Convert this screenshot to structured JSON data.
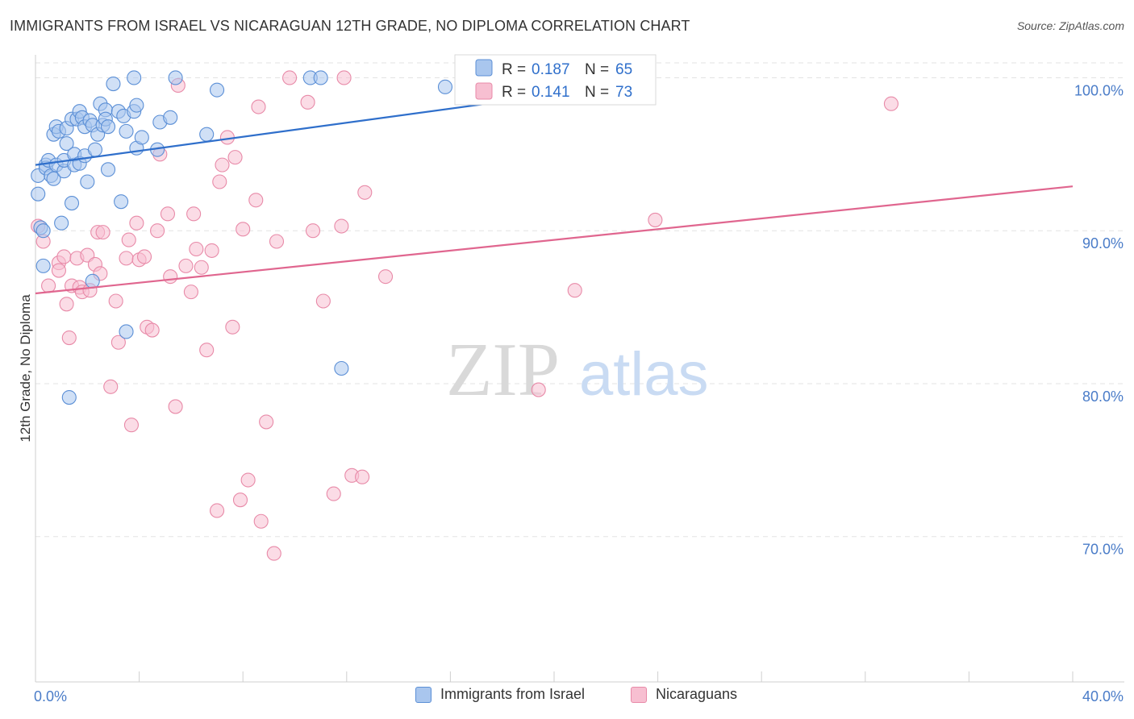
{
  "header": {
    "title": "IMMIGRANTS FROM ISRAEL VS NICARAGUAN 12TH GRADE, NO DIPLOMA CORRELATION CHART",
    "source": "Source: ZipAtlas.com"
  },
  "watermark": {
    "zip": "ZIP",
    "atlas": "atlas"
  },
  "legend_top": [
    {
      "r_label": "R = ",
      "r_value": "0.187",
      "n_label": "N = ",
      "n_value": "65"
    },
    {
      "r_label": "R = ",
      "r_value": "0.141",
      "n_label": "N = ",
      "n_value": "73"
    }
  ],
  "colors": {
    "blue_fill": "#a9c6ee",
    "blue_stroke": "#5b8fd6",
    "blue_line": "#2f6fcb",
    "pink_fill": "#f7bfd1",
    "pink_stroke": "#e88aa8",
    "pink_line": "#e0668f",
    "tick_text": "#4a7cc8",
    "grid": "#e3e3e3"
  },
  "chart_data": {
    "type": "scatter",
    "title": "IMMIGRANTS FROM ISRAEL VS NICARAGUAN 12TH GRADE, NO DIPLOMA CORRELATION CHART",
    "xlabel": "",
    "ylabel": "12th Grade, No Diploma",
    "xlim": [
      0,
      40
    ],
    "ylim": [
      60.5,
      101.5
    ],
    "x_tick_labels": [
      "0.0%",
      "40.0%"
    ],
    "y_ticks": [
      70,
      80,
      90,
      100
    ],
    "y_tick_labels": [
      "70.0%",
      "80.0%",
      "90.0%",
      "100.0%"
    ],
    "grid": true,
    "legend_placement": "bottom",
    "series": [
      {
        "name": "Immigrants from Israel",
        "color": "#a9c6ee",
        "R": 0.187,
        "N": 65,
        "trend": {
          "x": [
            0.0,
            20.0
          ],
          "y": [
            94.3,
            98.9
          ]
        },
        "points": [
          [
            0.1,
            92.4
          ],
          [
            0.1,
            93.6
          ],
          [
            0.2,
            90.2
          ],
          [
            0.3,
            90.0
          ],
          [
            0.3,
            87.7
          ],
          [
            0.4,
            94.3
          ],
          [
            0.4,
            94.1
          ],
          [
            0.5,
            94.6
          ],
          [
            0.6,
            93.6
          ],
          [
            0.7,
            93.4
          ],
          [
            0.7,
            96.3
          ],
          [
            0.8,
            94.3
          ],
          [
            0.8,
            96.8
          ],
          [
            0.9,
            96.5
          ],
          [
            1.0,
            90.5
          ],
          [
            1.1,
            93.9
          ],
          [
            1.1,
            94.6
          ],
          [
            1.2,
            95.7
          ],
          [
            1.2,
            96.7
          ],
          [
            1.3,
            79.1
          ],
          [
            1.4,
            97.3
          ],
          [
            1.4,
            91.8
          ],
          [
            1.5,
            94.3
          ],
          [
            1.5,
            95.0
          ],
          [
            1.6,
            97.3
          ],
          [
            1.7,
            94.4
          ],
          [
            1.7,
            97.8
          ],
          [
            1.8,
            97.4
          ],
          [
            1.9,
            96.8
          ],
          [
            1.9,
            94.9
          ],
          [
            2.0,
            93.2
          ],
          [
            2.1,
            97.2
          ],
          [
            2.2,
            96.9
          ],
          [
            2.2,
            86.7
          ],
          [
            2.3,
            95.3
          ],
          [
            2.4,
            96.3
          ],
          [
            2.5,
            98.3
          ],
          [
            2.6,
            96.9
          ],
          [
            2.7,
            97.9
          ],
          [
            2.7,
            97.3
          ],
          [
            2.8,
            96.8
          ],
          [
            2.8,
            94.0
          ],
          [
            3.0,
            99.6
          ],
          [
            3.2,
            97.8
          ],
          [
            3.3,
            91.9
          ],
          [
            3.4,
            97.5
          ],
          [
            3.5,
            83.4
          ],
          [
            3.5,
            96.5
          ],
          [
            3.8,
            100.0
          ],
          [
            3.8,
            97.8
          ],
          [
            3.9,
            98.2
          ],
          [
            3.9,
            95.4
          ],
          [
            4.1,
            96.1
          ],
          [
            4.7,
            95.3
          ],
          [
            4.8,
            97.1
          ],
          [
            5.2,
            97.4
          ],
          [
            5.4,
            100.0
          ],
          [
            6.6,
            96.3
          ],
          [
            7.0,
            99.2
          ],
          [
            10.6,
            100.0
          ],
          [
            11.0,
            100.0
          ],
          [
            11.8,
            81.0
          ],
          [
            15.8,
            99.4
          ],
          [
            16.5,
            100.0
          ],
          [
            17.0,
            100.0
          ]
        ]
      },
      {
        "name": "Nicaraguans",
        "color": "#f7bfd1",
        "R": 0.141,
        "N": 73,
        "trend": {
          "x": [
            0.0,
            40.0
          ],
          "y": [
            85.9,
            92.9
          ]
        },
        "points": [
          [
            0.1,
            90.3
          ],
          [
            0.3,
            89.3
          ],
          [
            0.5,
            86.4
          ],
          [
            0.9,
            87.9
          ],
          [
            0.9,
            87.4
          ],
          [
            1.1,
            88.3
          ],
          [
            1.2,
            85.2
          ],
          [
            1.3,
            83.0
          ],
          [
            1.4,
            86.4
          ],
          [
            1.6,
            88.2
          ],
          [
            1.7,
            86.3
          ],
          [
            1.8,
            86.0
          ],
          [
            2.0,
            88.4
          ],
          [
            2.1,
            86.1
          ],
          [
            2.3,
            87.8
          ],
          [
            2.4,
            89.9
          ],
          [
            2.5,
            87.2
          ],
          [
            2.6,
            89.9
          ],
          [
            2.9,
            79.8
          ],
          [
            3.1,
            85.4
          ],
          [
            3.2,
            82.7
          ],
          [
            3.5,
            88.2
          ],
          [
            3.6,
            89.4
          ],
          [
            3.7,
            77.3
          ],
          [
            3.9,
            90.5
          ],
          [
            4.0,
            88.1
          ],
          [
            4.2,
            88.3
          ],
          [
            4.3,
            83.7
          ],
          [
            4.5,
            83.5
          ],
          [
            4.7,
            90.0
          ],
          [
            4.8,
            95.0
          ],
          [
            5.1,
            91.1
          ],
          [
            5.2,
            87.0
          ],
          [
            5.4,
            78.5
          ],
          [
            5.5,
            99.5
          ],
          [
            5.8,
            87.7
          ],
          [
            6.0,
            86.0
          ],
          [
            6.1,
            91.1
          ],
          [
            6.2,
            88.8
          ],
          [
            6.4,
            87.6
          ],
          [
            6.6,
            82.2
          ],
          [
            6.8,
            88.7
          ],
          [
            7.0,
            71.7
          ],
          [
            7.1,
            93.2
          ],
          [
            7.2,
            94.3
          ],
          [
            7.4,
            96.1
          ],
          [
            7.6,
            83.7
          ],
          [
            7.7,
            94.8
          ],
          [
            7.9,
            72.4
          ],
          [
            8.0,
            90.1
          ],
          [
            8.2,
            73.7
          ],
          [
            8.5,
            92.0
          ],
          [
            8.6,
            98.1
          ],
          [
            8.7,
            71.0
          ],
          [
            8.9,
            77.5
          ],
          [
            9.2,
            68.9
          ],
          [
            9.3,
            89.3
          ],
          [
            9.8,
            100.0
          ],
          [
            10.5,
            98.4
          ],
          [
            10.7,
            90.0
          ],
          [
            11.1,
            85.4
          ],
          [
            11.5,
            72.8
          ],
          [
            11.8,
            90.3
          ],
          [
            11.9,
            100.0
          ],
          [
            12.2,
            74.0
          ],
          [
            12.6,
            73.9
          ],
          [
            12.7,
            92.5
          ],
          [
            13.5,
            87.0
          ],
          [
            19.4,
            79.6
          ],
          [
            20.8,
            86.1
          ],
          [
            21.2,
            100.0
          ],
          [
            23.9,
            90.7
          ],
          [
            33.0,
            98.3
          ]
        ]
      }
    ]
  }
}
